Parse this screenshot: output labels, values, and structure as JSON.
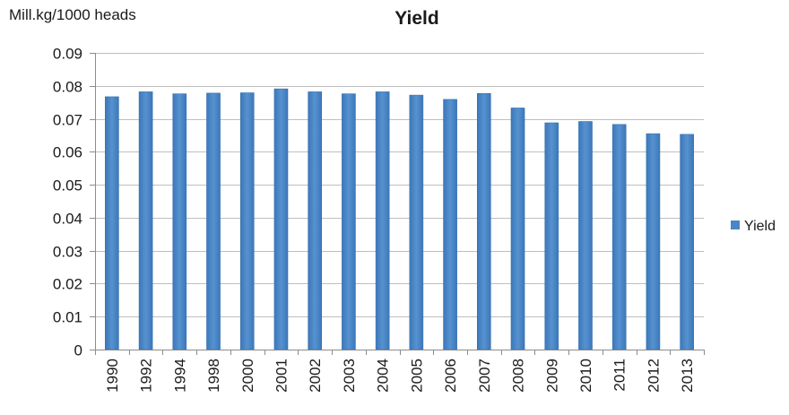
{
  "chart_data": {
    "type": "bar",
    "title": "Yield",
    "ylabel": "Mill.kg/1000 heads",
    "xlabel": "",
    "categories": [
      "1990",
      "1992",
      "1994",
      "1998",
      "2000",
      "2001",
      "2002",
      "2003",
      "2004",
      "2005",
      "2006",
      "2007",
      "2008",
      "2009",
      "2010",
      "2011",
      "2012",
      "2013"
    ],
    "series": [
      {
        "name": "Yield",
        "color": "#4a86c5",
        "values": [
          0.0767,
          0.0782,
          0.0776,
          0.0778,
          0.0779,
          0.0791,
          0.0782,
          0.0776,
          0.0782,
          0.0772,
          0.0759,
          0.0777,
          0.0733,
          0.0688,
          0.0692,
          0.0683,
          0.0655,
          0.0653
        ]
      }
    ],
    "y_ticks": [
      "0",
      "0.01",
      "0.02",
      "0.03",
      "0.04",
      "0.05",
      "0.06",
      "0.07",
      "0.08",
      "0.09"
    ],
    "ylim": [
      0,
      0.09
    ],
    "grid": true,
    "legend_position": "right",
    "colors": {
      "bar": "#4a86c5",
      "bar_dark": "#2f6aa8",
      "grid": "#bfbfbf",
      "axis": "#8c8c8c"
    }
  }
}
